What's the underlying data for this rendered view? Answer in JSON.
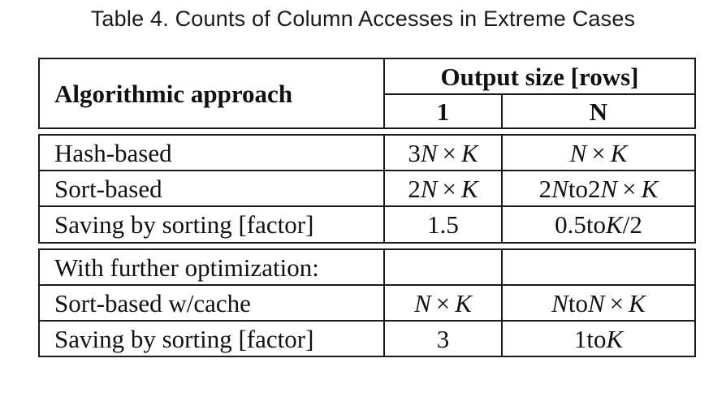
{
  "caption": "Table 4.  Counts of Column Accesses in Extreme Cases",
  "header": {
    "approach": "Algorithmic approach",
    "output_size": "Output size [rows]",
    "col_1": "1",
    "col_n": "N"
  },
  "rows": [
    {
      "label": "Hash-based",
      "c1": "3N × K",
      "cn": "N × K"
    },
    {
      "label": "Sort-based",
      "c1": "2N × K",
      "cn": "2N to 2N × K"
    },
    {
      "label": "Saving by sorting [factor]",
      "c1": "1.5",
      "cn": "0.5 to K/2"
    },
    {
      "label": "With further optimization:",
      "c1": "",
      "cn": ""
    },
    {
      "label": "Sort-based w/cache",
      "c1": "N × K",
      "cn": "N to N × K"
    },
    {
      "label": "Saving by sorting [factor]",
      "c1": "3",
      "cn": "1 to K"
    }
  ]
}
